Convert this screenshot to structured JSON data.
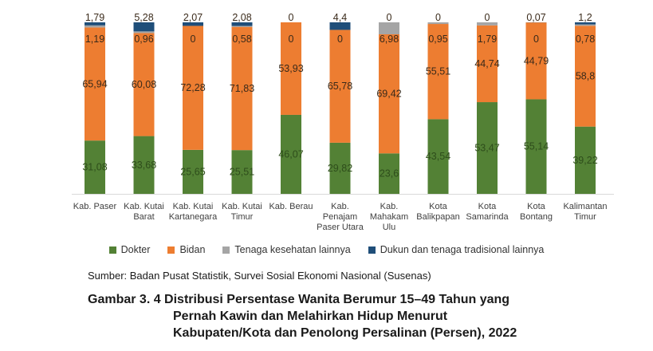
{
  "chart_data": {
    "type": "bar",
    "stacked": true,
    "normalized": true,
    "categories": [
      [
        "Kab. Paser"
      ],
      [
        "Kab. Kutai",
        "Barat"
      ],
      [
        "Kab. Kutai",
        "Kartanegara"
      ],
      [
        "Kab. Kutai",
        "Timur"
      ],
      [
        "Kab. Berau"
      ],
      [
        "Kab.",
        "Penajam",
        "Paser Utara"
      ],
      [
        "Kab.",
        "Mahakam",
        "Ulu"
      ],
      [
        "Kota",
        "Balikpapan"
      ],
      [
        "Kota",
        "Samarinda"
      ],
      [
        "Kota",
        "Bontang"
      ],
      [
        "Kalimantan",
        "Timur"
      ]
    ],
    "series": [
      {
        "name": "Dokter",
        "color": "#538135",
        "values": [
          31.08,
          33.68,
          25.65,
          25.51,
          46.07,
          29.82,
          23.6,
          43.54,
          53.47,
          55.14,
          39.22
        ],
        "labels": [
          "31,08",
          "33,68",
          "25,65",
          "25,51",
          "46,07",
          "29,82",
          "23,6",
          "43,54",
          "53,47",
          "55,14",
          "39,22"
        ]
      },
      {
        "name": "Bidan",
        "color": "#ED7D31",
        "values": [
          65.94,
          60.08,
          72.28,
          71.83,
          53.93,
          65.78,
          69.42,
          55.51,
          44.74,
          44.79,
          58.8
        ],
        "labels": [
          "65,94",
          "60,08",
          "72,28",
          "71,83",
          "53,93",
          "65,78",
          "69,42",
          "55,51",
          "44,74",
          "44,79",
          "58,8"
        ]
      },
      {
        "name": "Tenaga kesehatan lainnya",
        "color": "#A5A5A5",
        "values": [
          1.19,
          0.96,
          0,
          0.58,
          0,
          0,
          6.98,
          0.95,
          1.79,
          0,
          0.78
        ],
        "labels": [
          "1,19",
          "0,96",
          "0",
          "0,58",
          "0",
          "0",
          "6,98",
          "0,95",
          "1,79",
          "0",
          "0,78"
        ]
      },
      {
        "name": "Dukun dan tenaga tradisional lainnya",
        "color": "#1F4E79",
        "values": [
          1.79,
          5.28,
          2.07,
          2.08,
          0,
          4.4,
          0,
          0,
          0,
          0.07,
          1.2
        ],
        "labels": [
          "1,79",
          "5,28",
          "2,07",
          "2,08",
          "0",
          "4,4",
          "0",
          "0",
          "0",
          "0,07",
          "1,2"
        ]
      }
    ],
    "ylim": [
      0,
      100
    ],
    "legend_position": "bottom",
    "grid": false
  },
  "source": "Sumber: Badan Pusat Statistik, Survei Sosial Ekonomi Nasional (Susenas)",
  "caption": {
    "line1": "Gambar 3. 4 Distribusi Persentase Wanita Berumur 15–49 Tahun yang",
    "line2": "Pernah Kawin dan Melahirkan Hidup Menurut",
    "line3": "Kabupaten/Kota dan Penolong Persalinan (Persen), 2022"
  }
}
